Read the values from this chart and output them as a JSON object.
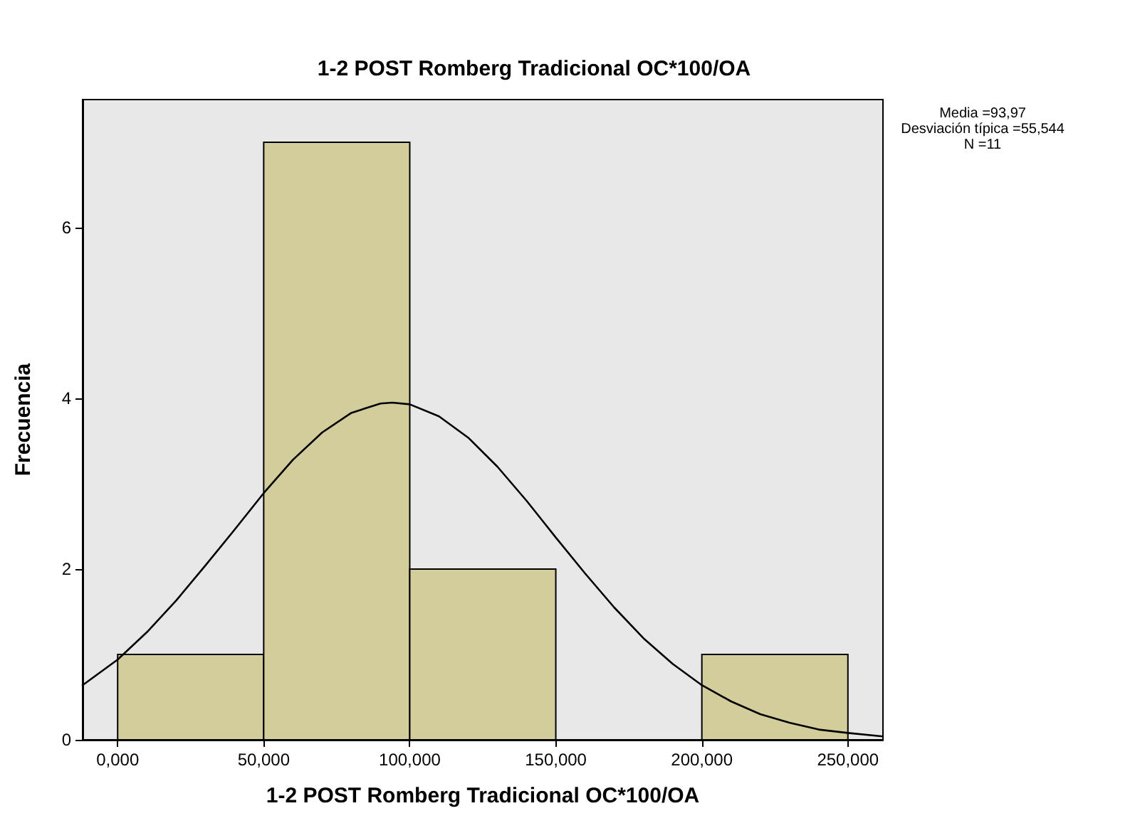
{
  "chart_data": {
    "type": "histogram",
    "title": "1-2 POST Romberg Tradicional OC*100/OA",
    "xlabel": "1-2 POST Romberg Tradicional OC*100/OA",
    "ylabel": "Frecuencia",
    "bins": [
      0,
      50,
      100,
      150,
      200,
      250
    ],
    "values": [
      1,
      7,
      2,
      0,
      1
    ],
    "color": "#d3cc9b",
    "series": [
      {
        "type": "line",
        "color": "#000000",
        "x": [
          -12,
          0,
          10,
          20,
          30,
          40,
          50,
          60,
          70,
          80,
          90,
          94,
          100,
          110,
          120,
          130,
          140,
          150,
          160,
          170,
          180,
          190,
          200,
          210,
          220,
          230,
          240,
          250,
          262
        ],
        "values": [
          0.64,
          0.94,
          1.26,
          1.63,
          2.04,
          2.46,
          2.89,
          3.28,
          3.6,
          3.83,
          3.94,
          3.95,
          3.93,
          3.79,
          3.54,
          3.2,
          2.8,
          2.37,
          1.95,
          1.55,
          1.19,
          0.89,
          0.64,
          0.45,
          0.3,
          0.2,
          0.12,
          0.08,
          0.04
        ]
      }
    ],
    "xlim": [
      -12,
      262
    ],
    "xticks": [
      {
        "value": 0,
        "label": "0,000"
      },
      {
        "value": 50,
        "label": "50,000"
      },
      {
        "value": 100,
        "label": "100,000"
      },
      {
        "value": 150,
        "label": "150,000"
      },
      {
        "value": 200,
        "label": "200,000"
      },
      {
        "value": 250,
        "label": "250,000"
      }
    ],
    "ylim": [
      0,
      7.5
    ],
    "yticks": [
      0,
      2,
      4,
      6
    ],
    "grid": false,
    "legend": false,
    "marker": "none",
    "line_style": "solid",
    "annotations": [
      "Media =93,97",
      "Desviación típica =55,544",
      "N =11"
    ]
  }
}
